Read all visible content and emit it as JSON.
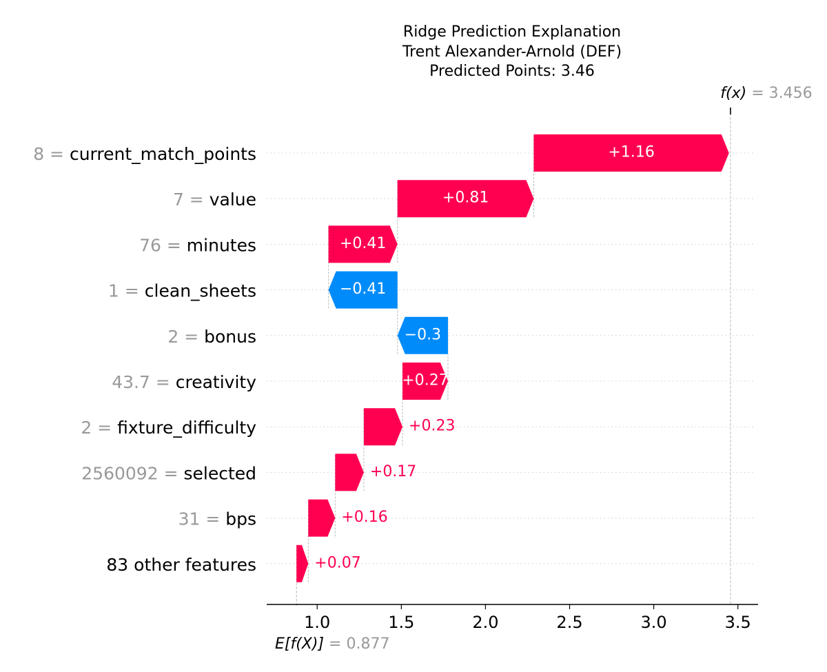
{
  "chart_data": {
    "type": "waterfall",
    "title_lines": [
      "Ridge Prediction Explanation",
      "Trent Alexander-Arnold (DEF)",
      "Predicted Points: 3.46"
    ],
    "fx": {
      "label_text": "f(x)",
      "equals": " = ",
      "value_text": "3.456",
      "value": 3.456
    },
    "base": {
      "label_text": "E[f(X)]",
      "equals": " = ",
      "value_text": "0.877",
      "value": 0.877
    },
    "xlim": [
      0.7,
      3.62
    ],
    "xticks": [
      1.0,
      1.5,
      2.0,
      2.5,
      3.0,
      3.5
    ],
    "xtick_labels": [
      "1.0",
      "1.5",
      "2.0",
      "2.5",
      "3.0",
      "3.5"
    ],
    "features": [
      {
        "value_text": "8",
        "name": "current_match_points",
        "contribution": 1.16,
        "label": "+1.16",
        "label_inside": true
      },
      {
        "value_text": "7",
        "name": "value",
        "contribution": 0.81,
        "label": "+0.81",
        "label_inside": true
      },
      {
        "value_text": "76",
        "name": "minutes",
        "contribution": 0.41,
        "label": "+0.41",
        "label_inside": true
      },
      {
        "value_text": "1",
        "name": "clean_sheets",
        "contribution": -0.41,
        "label": "−0.41",
        "label_inside": true
      },
      {
        "value_text": "2",
        "name": "bonus",
        "contribution": -0.3,
        "label": "−0.3",
        "label_inside": true
      },
      {
        "value_text": "43.7",
        "name": "creativity",
        "contribution": 0.27,
        "label": "+0.27",
        "label_inside": true
      },
      {
        "value_text": "2",
        "name": "fixture_difficulty",
        "contribution": 0.23,
        "label": "+0.23",
        "label_inside": false
      },
      {
        "value_text": "2560092",
        "name": "selected",
        "contribution": 0.17,
        "label": "+0.17",
        "label_inside": false
      },
      {
        "value_text": "31",
        "name": "bps",
        "contribution": 0.16,
        "label": "+0.16",
        "label_inside": false
      },
      {
        "value_text": "",
        "name": "83 other features",
        "contribution": 0.07,
        "label": "+0.07",
        "label_inside": false
      }
    ],
    "colors": {
      "positive": "#ff0051",
      "negative": "#008bfb",
      "value_gray": "#999999",
      "axis": "#000000"
    }
  }
}
